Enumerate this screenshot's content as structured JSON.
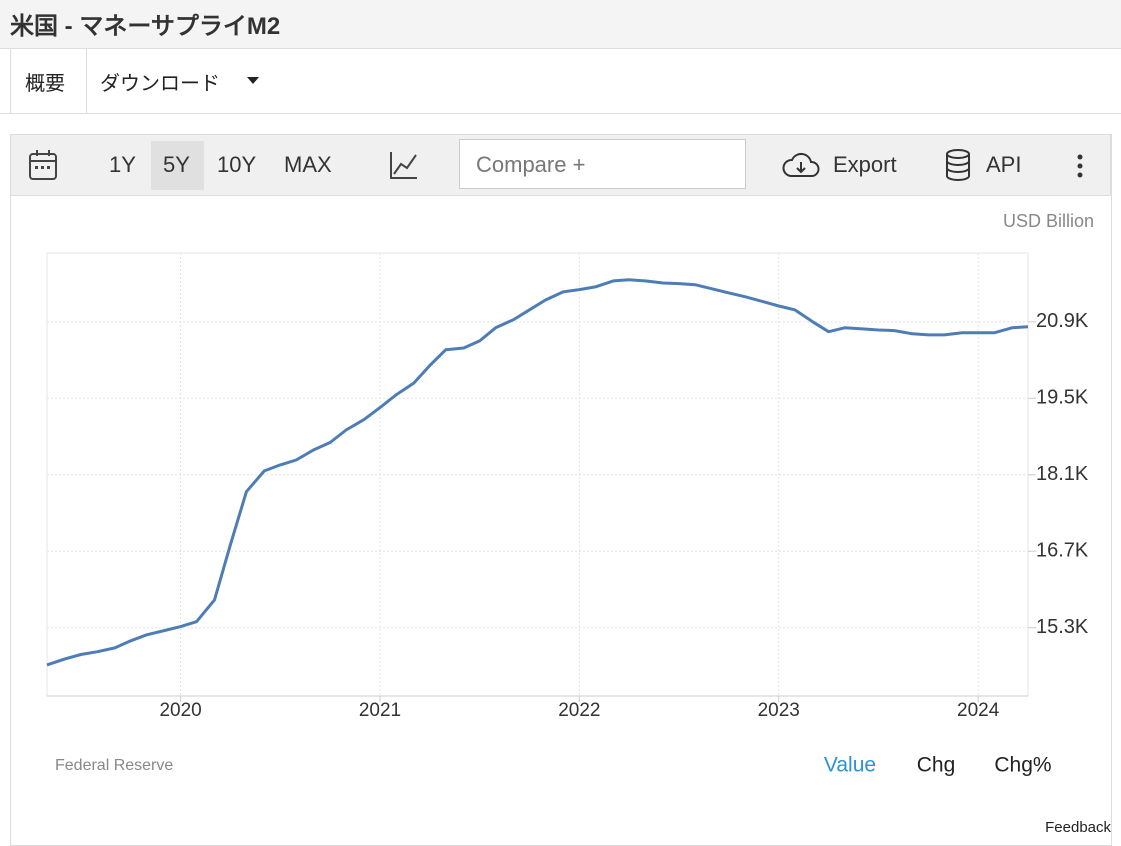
{
  "header": {
    "title": "米国 - マネーサプライM2"
  },
  "tabs": [
    "概要",
    "ダウンロード"
  ],
  "toolbar": {
    "ranges": [
      "1Y",
      "5Y",
      "10Y",
      "MAX"
    ],
    "compare": "Compare +",
    "export": "Export",
    "api": "API"
  },
  "chart_data": {
    "type": "line",
    "y_label": "USD Billion",
    "color": "#4e7db6",
    "grid": true,
    "x": [
      2019.33,
      2019.42,
      2019.5,
      2019.58,
      2019.67,
      2019.75,
      2019.83,
      2019.92,
      2020,
      2020.08,
      2020.17,
      2020.25,
      2020.33,
      2020.42,
      2020.5,
      2020.58,
      2020.67,
      2020.75,
      2020.83,
      2020.92,
      2021,
      2021.08,
      2021.17,
      2021.25,
      2021.33,
      2021.42,
      2021.5,
      2021.58,
      2021.67,
      2021.75,
      2021.83,
      2021.92,
      2022,
      2022.08,
      2022.17,
      2022.25,
      2022.33,
      2022.42,
      2022.5,
      2022.58,
      2022.67,
      2022.75,
      2022.83,
      2022.92,
      2023,
      2023.08,
      2023.17,
      2023.25,
      2023.33,
      2023.42,
      2023.5,
      2023.58,
      2023.67,
      2023.75,
      2023.83,
      2023.92,
      2024,
      2024.08,
      2024.17,
      2024.25
    ],
    "values": [
      14620,
      14730,
      14810,
      14860,
      14930,
      15060,
      15170,
      15250,
      15320,
      15410,
      15810,
      16820,
      17790,
      18170,
      18280,
      18370,
      18560,
      18690,
      18920,
      19110,
      19330,
      19560,
      19780,
      20100,
      20390,
      20420,
      20550,
      20790,
      20940,
      21120,
      21300,
      21450,
      21490,
      21540,
      21650,
      21670,
      21650,
      21610,
      21600,
      21580,
      21500,
      21430,
      21360,
      21270,
      21190,
      21120,
      20900,
      20720,
      20790,
      20770,
      20750,
      20740,
      20680,
      20660,
      20660,
      20700,
      20700,
      20700,
      20790,
      20810
    ],
    "xlim": [
      2019.33,
      2024.25
    ],
    "ylim": [
      14050,
      22160
    ],
    "xticks": [
      2020,
      2021,
      2022,
      2023,
      2024
    ],
    "yticks": [
      {
        "value": 15300,
        "label": "15.3K"
      },
      {
        "value": 16700,
        "label": "16.7K"
      },
      {
        "value": 18100,
        "label": "18.1K"
      },
      {
        "value": 19500,
        "label": "19.5K"
      },
      {
        "value": 20900,
        "label": "20.9K"
      }
    ]
  },
  "source": "Federal Reserve",
  "view_modes": [
    "Value",
    "Chg",
    "Chg%"
  ],
  "feedback": "Feedback"
}
